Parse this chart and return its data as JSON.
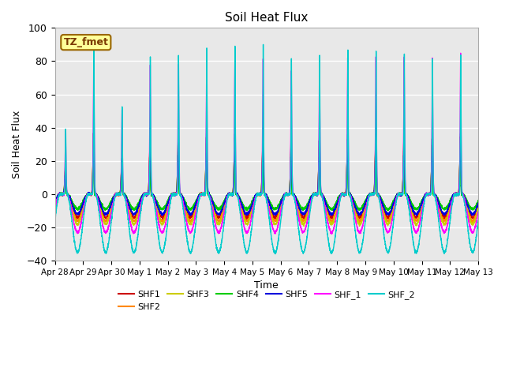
{
  "title": "Soil Heat Flux",
  "xlabel": "Time",
  "ylabel": "Soil Heat Flux",
  "ylim": [
    -40,
    100
  ],
  "yticks": [
    -40,
    -20,
    0,
    20,
    40,
    60,
    80,
    100
  ],
  "x_tick_labels": [
    "Apr 28",
    "Apr 29",
    "Apr 30",
    "May 1",
    "May 2",
    "May 3",
    "May 4",
    "May 5",
    "May 6",
    "May 7",
    "May 8",
    "May 9",
    "May 10",
    "May 11",
    "May 12",
    "May 13"
  ],
  "series_colors": {
    "SHF1": "#cc0000",
    "SHF2": "#ff8800",
    "SHF3": "#cccc00",
    "SHF4": "#00cc00",
    "SHF5": "#0000dd",
    "SHF_1": "#ff00ff",
    "SHF_2": "#00cccc"
  },
  "annotation_text": "TZ_fmet",
  "annotation_bg": "#ffff99",
  "annotation_border": "#996600",
  "plot_bg": "#e8e8e8",
  "n_days": 15,
  "points_per_day": 288
}
